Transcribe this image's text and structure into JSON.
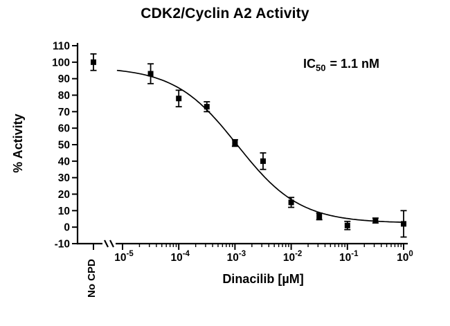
{
  "chart_data": {
    "type": "scatter",
    "title": "CDK2/Cyclin A2 Activity",
    "xlabel": "Dinacilib [µM]",
    "ylabel": "% Activity",
    "x_scale": "log10",
    "x_tick_base": "10",
    "x_tick_exponents": [
      -5,
      -4,
      -3,
      -2,
      -1,
      0
    ],
    "ylim": [
      -10,
      110
    ],
    "y_tick_step": 10,
    "grid": false,
    "no_cpd": {
      "label": "No CPD",
      "y": 100,
      "err": 5
    },
    "series": [
      {
        "name": "Dinacilib",
        "marker": "square",
        "points": [
          {
            "x": 3.16e-05,
            "y": 93,
            "err": 6
          },
          {
            "x": 0.0001,
            "y": 78,
            "err": 5
          },
          {
            "x": 0.000316,
            "y": 73,
            "err": 3
          },
          {
            "x": 0.001,
            "y": 51,
            "err": 2
          },
          {
            "x": 0.00316,
            "y": 40,
            "err": 5
          },
          {
            "x": 0.01,
            "y": 15,
            "err": 3
          },
          {
            "x": 0.0316,
            "y": 6.5,
            "err": 2
          },
          {
            "x": 0.1,
            "y": 1,
            "err": 2.5
          },
          {
            "x": 0.316,
            "y": 4,
            "err": 1.5
          },
          {
            "x": 1,
            "y": 2,
            "err": 8
          }
        ]
      }
    ],
    "fit_curve": {
      "model": "4PL",
      "top": 97,
      "bottom": 2.5,
      "ic50_um": 0.0011,
      "hill": 0.78
    },
    "annotation": {
      "prefix": "IC",
      "sub": "50",
      "suffix": " = 1.1 nM"
    },
    "colors": {
      "foreground": "#000000",
      "background": "#ffffff"
    }
  }
}
